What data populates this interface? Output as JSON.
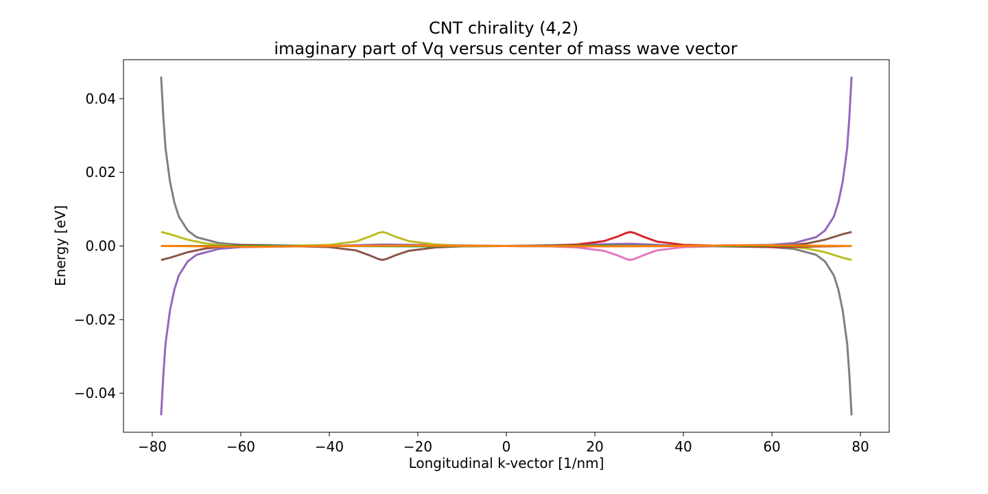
{
  "chart_data": {
    "type": "line",
    "title_line1": "CNT chirality (4,2)",
    "title_line2": "imaginary part of Vq versus center of mass wave vector",
    "xlabel": "Longitudinal k-vector [1/nm]",
    "ylabel": "Energy [eV]",
    "xlim": [
      -86.5,
      86.5
    ],
    "ylim": [
      -0.0506,
      0.0506
    ],
    "xticks": [
      -80,
      -60,
      -40,
      -20,
      0,
      20,
      40,
      60,
      80
    ],
    "xtick_labels": [
      "−80",
      "−60",
      "−40",
      "−20",
      "0",
      "20",
      "40",
      "60",
      "80"
    ],
    "yticks": [
      -0.04,
      -0.02,
      0.0,
      0.02,
      0.04
    ],
    "ytick_labels": [
      "−0.04",
      "−0.02",
      "0.00",
      "0.02",
      "0.04"
    ],
    "grid": false,
    "series": [
      {
        "color": "#7f7f7f",
        "x": [
          -78,
          -77.5,
          -77,
          -76,
          -75,
          -74,
          -72,
          -70,
          -65,
          -60,
          -40,
          0,
          40,
          60,
          65,
          70,
          72,
          74,
          75,
          76,
          77,
          77.5,
          78
        ],
        "y": [
          0.046,
          0.035,
          0.0265,
          0.0175,
          0.0118,
          0.008,
          0.0042,
          0.0024,
          0.0008,
          0.0003,
          0.0,
          0.0,
          0.0,
          -0.0003,
          -0.0008,
          -0.0024,
          -0.0042,
          -0.008,
          -0.0118,
          -0.0175,
          -0.0265,
          -0.035,
          -0.046
        ]
      },
      {
        "color": "#9467bd",
        "x": [
          -78,
          -77.5,
          -77,
          -76,
          -75,
          -74,
          -72,
          -70,
          -65,
          -60,
          -40,
          -28,
          0,
          28,
          40,
          60,
          65,
          70,
          72,
          74,
          75,
          76,
          77,
          77.5,
          78
        ],
        "y": [
          -0.046,
          -0.035,
          -0.0265,
          -0.0175,
          -0.0118,
          -0.008,
          -0.0042,
          -0.0024,
          -0.0008,
          -0.0003,
          0.0,
          0.0004,
          0.0,
          0.0006,
          0.0,
          0.0003,
          0.0008,
          0.0024,
          0.0042,
          0.008,
          0.0118,
          0.0175,
          0.0265,
          0.035,
          0.046
        ]
      },
      {
        "color": "#bcbd22",
        "x": [
          -78,
          -76,
          -72,
          -68,
          -64,
          -60,
          -50,
          -40,
          -34,
          -31,
          -29,
          -28,
          -27,
          -25,
          -22,
          -16,
          -10,
          0,
          10,
          40,
          60,
          64,
          68,
          72,
          76,
          78
        ],
        "y": [
          0.0038,
          0.0032,
          0.0017,
          0.0007,
          0.0002,
          0.0,
          0.0,
          0.0003,
          0.0012,
          0.0025,
          0.0035,
          0.0038,
          0.0035,
          0.0025,
          0.0013,
          0.0004,
          0.0001,
          0.0,
          0.0,
          0.0,
          0.0,
          -0.0002,
          -0.0007,
          -0.0017,
          -0.0032,
          -0.0038
        ]
      },
      {
        "color": "#8c564b",
        "x": [
          -78,
          -76,
          -72,
          -68,
          -64,
          -60,
          -50,
          -40,
          -34,
          -31,
          -29,
          -28,
          -27,
          -25,
          -22,
          -16,
          -10,
          0,
          10,
          40,
          60,
          64,
          68,
          72,
          76,
          78
        ],
        "y": [
          -0.0038,
          -0.0032,
          -0.0017,
          -0.0007,
          -0.0002,
          0.0003,
          0.0,
          -0.0003,
          -0.0012,
          -0.0025,
          -0.0035,
          -0.0038,
          -0.0035,
          -0.0025,
          -0.0013,
          -0.0004,
          -0.0001,
          0.0,
          0.0,
          0.0,
          0.0002,
          0.0002,
          0.0007,
          0.0017,
          0.0032,
          0.0038
        ]
      },
      {
        "color": "#d62728",
        "x": [
          -78,
          -40,
          0,
          10,
          16,
          22,
          25,
          27,
          28,
          29,
          31,
          34,
          40,
          50,
          60,
          78
        ],
        "y": [
          0.0,
          0.0,
          0.0,
          0.0001,
          0.0004,
          0.0013,
          0.0025,
          0.0035,
          0.0038,
          0.0035,
          0.0025,
          0.0012,
          0.0003,
          0.0,
          -0.0003,
          0.0
        ]
      },
      {
        "color": "#e377c2",
        "x": [
          -78,
          -40,
          0,
          10,
          16,
          22,
          25,
          27,
          28,
          29,
          31,
          34,
          40,
          50,
          78
        ],
        "y": [
          0.0,
          0.0,
          0.0,
          -0.0001,
          -0.0004,
          -0.0013,
          -0.0025,
          -0.0035,
          -0.0038,
          -0.0035,
          -0.0025,
          -0.0012,
          -0.0003,
          0.0,
          0.0
        ]
      },
      {
        "color": "#1f77b4",
        "x": [
          -78,
          -40,
          -20,
          0,
          20,
          40,
          78
        ],
        "y": [
          0.0,
          0.0,
          0.0001,
          0.0,
          -0.0001,
          0.0,
          0.0
        ]
      },
      {
        "color": "#2ca02c",
        "x": [
          -78,
          -40,
          -20,
          0,
          20,
          40,
          78
        ],
        "y": [
          0.0,
          0.0,
          -0.0001,
          0.0,
          0.0001,
          0.0,
          0.0
        ]
      },
      {
        "color": "#ff7f0e",
        "x": [
          -78,
          -56,
          -40,
          -20,
          0,
          20,
          40,
          56,
          78
        ],
        "y": [
          0.0,
          -0.0002,
          0.0,
          0.0001,
          0.0,
          -0.0001,
          0.0,
          0.0002,
          0.0
        ]
      }
    ]
  }
}
